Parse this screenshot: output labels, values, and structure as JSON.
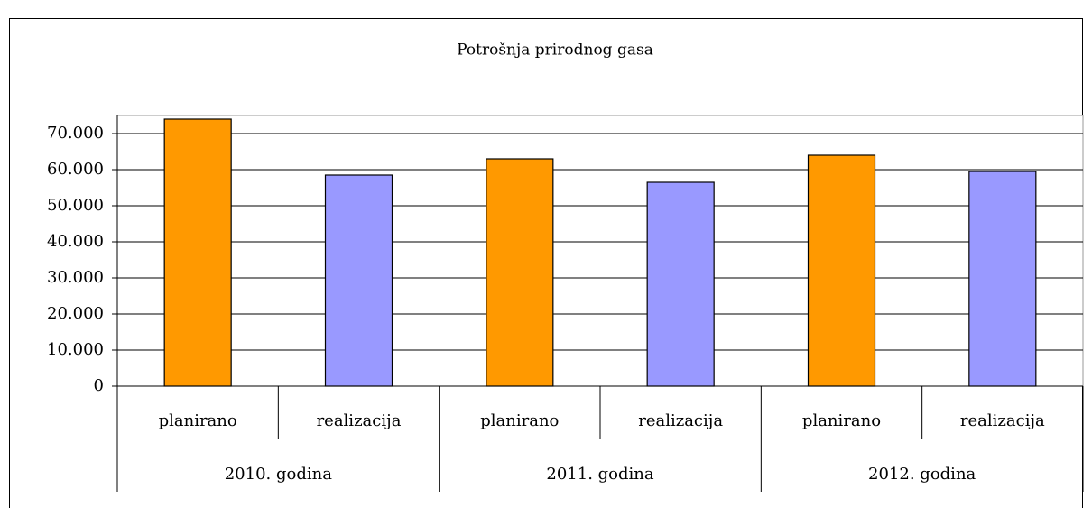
{
  "chart_data": {
    "type": "bar",
    "title": "Potrošnja prirodnog gasa",
    "categories": [
      "planirano",
      "realizacija",
      "planirano",
      "realizacija",
      "planirano",
      "realizacija"
    ],
    "groups": [
      "2010. godina",
      "2011. godina",
      "2012. godina"
    ],
    "values": [
      74000,
      58500,
      63000,
      56500,
      64000,
      59500
    ],
    "colors": [
      "#ff9900",
      "#9999ff",
      "#ff9900",
      "#9999ff",
      "#ff9900",
      "#9999ff"
    ],
    "ylim": [
      0,
      75000
    ],
    "yticks": [
      {
        "value": 0,
        "label": "0"
      },
      {
        "value": 10000,
        "label": "10.000"
      },
      {
        "value": 20000,
        "label": "20.000"
      },
      {
        "value": 30000,
        "label": "30.000"
      },
      {
        "value": 40000,
        "label": "40.000"
      },
      {
        "value": 50000,
        "label": "50.000"
      },
      {
        "value": 60000,
        "label": "60.000"
      },
      {
        "value": 70000,
        "label": "70.000"
      }
    ],
    "grid": true
  }
}
